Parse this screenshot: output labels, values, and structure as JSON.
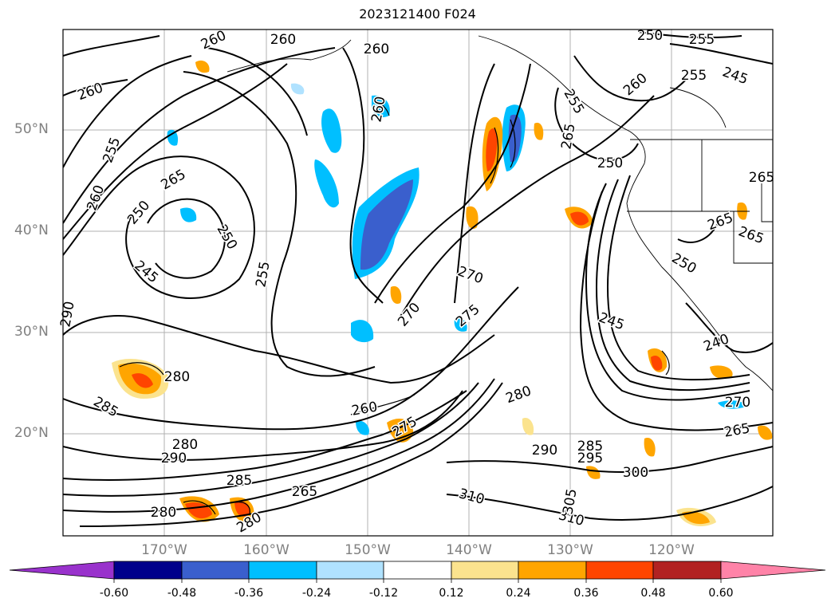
{
  "title": "2023121400 F024",
  "lat_labels": [
    "50°N",
    "40°N",
    "30°N",
    "20°N"
  ],
  "lon_labels": [
    "170°W",
    "160°W",
    "150°W",
    "140°W",
    "130°W",
    "120°W"
  ],
  "colorbar": {
    "ticks": [
      "-0.60",
      "-0.48",
      "-0.36",
      "-0.24",
      "-0.12",
      "0.12",
      "0.24",
      "0.36",
      "0.48",
      "0.60"
    ],
    "colors": [
      "#9932cc",
      "#00008b",
      "#3a5fcd",
      "#00bfff",
      "#b0e2ff",
      "#ffffff",
      "#fbe38e",
      "#ffa500",
      "#ff4500",
      "#b22222",
      "#ff83a8"
    ]
  },
  "contour_labels": [
    "260",
    "260",
    "260",
    "260",
    "250",
    "255",
    "245",
    "260",
    "255",
    "255",
    "260",
    "265",
    "250",
    "250",
    "260",
    "255",
    "265",
    "245",
    "250",
    "255",
    "250",
    "290",
    "265",
    "270",
    "270",
    "275",
    "280",
    "280",
    "285",
    "280",
    "290",
    "260",
    "275",
    "285",
    "295",
    "290",
    "300",
    "310",
    "310",
    "305",
    "280",
    "265",
    "285",
    "280",
    "245",
    "240",
    "265",
    "265",
    "265",
    "270"
  ]
}
